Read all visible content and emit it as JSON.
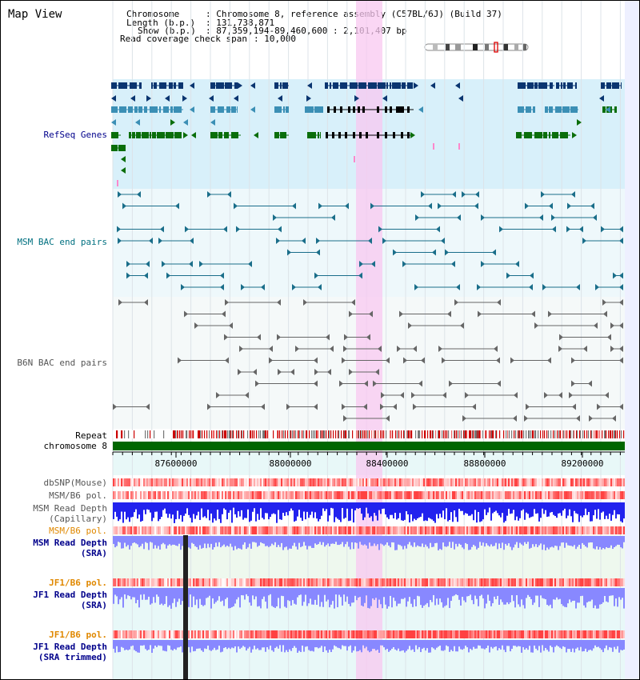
{
  "view_title": "Map View",
  "header": {
    "chromosome_key": "Chromosome",
    "chromosome_val": ": Chromosome 8, reference assembly (C57BL/6J) (Build 37)",
    "length_key": "Length (b.p.)",
    "length_val": ": 131,738,871",
    "show_key": "Show (b.p.)",
    "show_val": ": 87,359,194-89,460,600 : 2,101,407 bp",
    "span_key": "Read coverage check span",
    "span_val": ": 10,000"
  },
  "tracks": {
    "refseq": "RefSeq Genes",
    "msm_bac": "MSM BAC end pairs",
    "b6n_bac": "B6N BAC end pairs",
    "repeat": "Repeat",
    "chromosome": "chromosome 8",
    "dbsnp": "dbSNP(Mouse)",
    "msm_pol_1": "MSM/B6 pol.",
    "msm_depth_cap_1": "MSM Read Depth",
    "msm_depth_cap_2": "(Capillary)",
    "msm_pol_2": "MSM/B6 pol.",
    "msm_depth_sra_1": "MSM Read Depth",
    "msm_depth_sra_2": "(SRA)",
    "jf1_pol_1": "JF1/B6 pol.",
    "jf1_depth_sra_1": "JF1 Read Depth",
    "jf1_depth_sra_2": "(SRA)",
    "jf1_pol_2": "JF1/B6 pol.",
    "jf1_depth_trim_1": "JF1 Read Depth",
    "jf1_depth_trim_2": "(SRA trimmed)"
  },
  "ruler": {
    "ticks": [
      "87600000",
      "88000000",
      "88400000",
      "88800000",
      "89200000"
    ]
  },
  "colors": {
    "refseq_bg": "#d8f0fa",
    "bac_bg": "#eef8fb",
    "highlight": "#f8c8f0",
    "dark_gene": "#0a3570",
    "mid_gene": "#3b8fb5",
    "green_gene": "#0a6e0a",
    "label_navy": "#00008b",
    "label_teal": "#007080",
    "label_grey": "#555555",
    "label_orange": "#e08800",
    "depth_blue": "#2222ee",
    "depth_light": "#8888ff"
  }
}
